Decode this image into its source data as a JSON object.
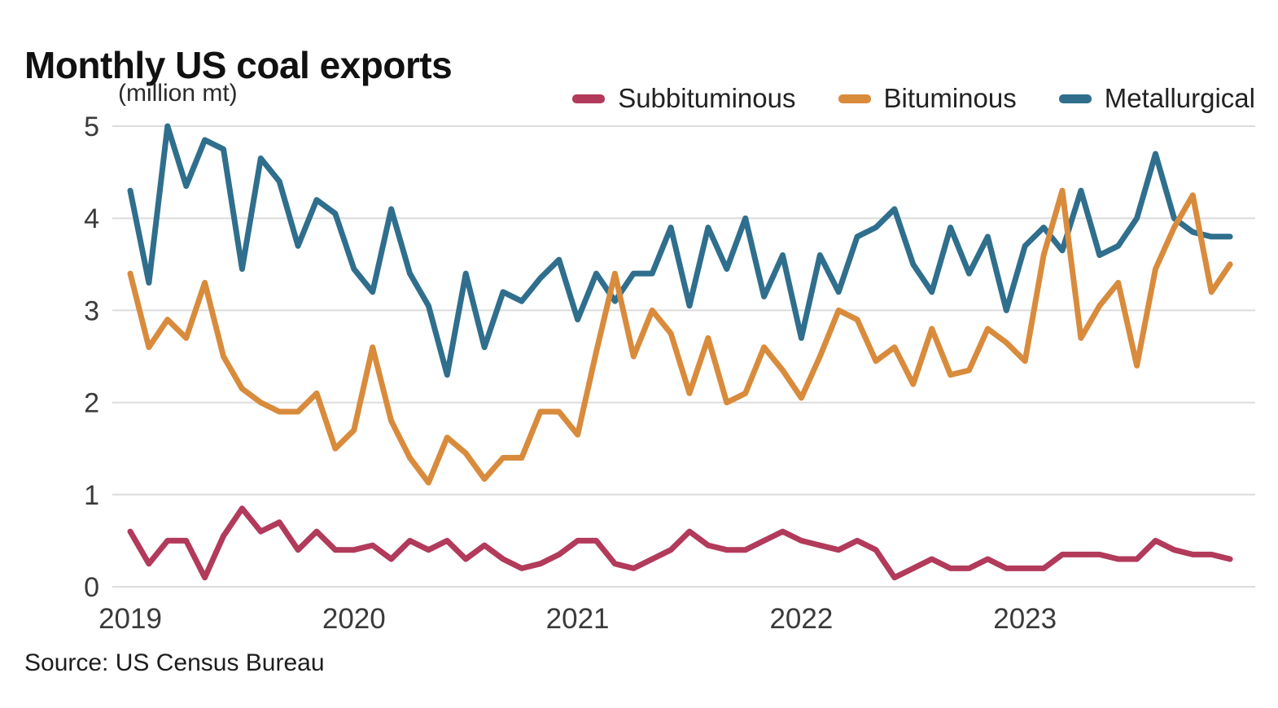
{
  "header": {
    "title": "Monthly US coal exports",
    "units_label": "(million mt)"
  },
  "source": {
    "text": "Source: US Census Bureau"
  },
  "colors": {
    "background": "#ffffff",
    "gridline": "#dcdcdc",
    "axis_text": "#3a3a3a",
    "title_text": "#111111",
    "subbituminous": "#b23a5b",
    "bituminous": "#d98b3c",
    "metallurgical": "#2f6f8d"
  },
  "chart_data": {
    "type": "line",
    "title": "Monthly US coal exports",
    "ylabel": "million mt",
    "xlabel": "",
    "ylim": [
      0,
      5
    ],
    "y_ticks": [
      0,
      1,
      2,
      3,
      4,
      5
    ],
    "grid": "horizontal",
    "legend_position": "top-right",
    "x_start": "2019-01",
    "x_end": "2023-12",
    "x_tick_labels": [
      "2019",
      "2020",
      "2021",
      "2022",
      "2023"
    ],
    "series": [
      {
        "name": "Subbituminous",
        "color": "#b23a5b",
        "values": [
          0.6,
          0.25,
          0.5,
          0.5,
          0.1,
          0.55,
          0.85,
          0.6,
          0.7,
          0.4,
          0.6,
          0.4,
          0.4,
          0.45,
          0.3,
          0.5,
          0.4,
          0.5,
          0.3,
          0.45,
          0.3,
          0.2,
          0.25,
          0.35,
          0.5,
          0.5,
          0.25,
          0.2,
          0.3,
          0.4,
          0.6,
          0.45,
          0.4,
          0.4,
          0.5,
          0.6,
          0.5,
          0.45,
          0.4,
          0.5,
          0.4,
          0.1,
          0.2,
          0.3,
          0.2,
          0.2,
          0.3,
          0.2,
          0.2,
          0.2,
          0.35,
          0.35,
          0.35,
          0.3,
          0.3,
          0.5,
          0.4,
          0.35,
          0.35,
          0.3
        ]
      },
      {
        "name": "Bituminous",
        "color": "#d98b3c",
        "values": [
          3.4,
          2.6,
          2.9,
          2.7,
          3.3,
          2.5,
          2.15,
          2.0,
          1.9,
          1.9,
          2.1,
          1.5,
          1.7,
          2.6,
          1.8,
          1.4,
          1.13,
          1.62,
          1.45,
          1.17,
          1.4,
          1.4,
          1.9,
          1.9,
          1.65,
          2.55,
          3.4,
          2.5,
          3.0,
          2.75,
          2.1,
          2.7,
          2.0,
          2.1,
          2.6,
          2.35,
          2.05,
          2.5,
          3.0,
          2.9,
          2.45,
          2.6,
          2.2,
          2.8,
          2.3,
          2.35,
          2.8,
          2.65,
          2.45,
          3.6,
          4.3,
          2.7,
          3.05,
          3.3,
          2.4,
          3.45,
          3.9,
          4.25,
          3.2,
          3.5
        ]
      },
      {
        "name": "Metallurgical",
        "color": "#2f6f8d",
        "values": [
          4.3,
          3.3,
          5.0,
          4.35,
          4.85,
          4.75,
          3.45,
          4.65,
          4.4,
          3.7,
          4.2,
          4.05,
          3.45,
          3.2,
          4.1,
          3.4,
          3.05,
          2.3,
          3.4,
          2.6,
          3.2,
          3.1,
          3.35,
          3.55,
          2.9,
          3.4,
          3.1,
          3.4,
          3.4,
          3.9,
          3.05,
          3.9,
          3.45,
          4.0,
          3.15,
          3.6,
          2.7,
          3.6,
          3.2,
          3.8,
          3.9,
          4.1,
          3.5,
          3.2,
          3.9,
          3.4,
          3.8,
          3.0,
          3.7,
          3.9,
          3.65,
          4.3,
          3.6,
          3.7,
          4.0,
          4.7,
          4.0,
          3.85,
          3.8,
          3.8
        ]
      }
    ]
  }
}
